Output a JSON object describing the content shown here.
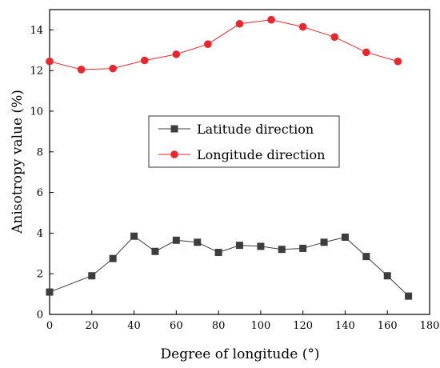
{
  "chart_data": {
    "type": "line",
    "title": "",
    "xlabel": "Degree of longitude (°)",
    "ylabel": "Anisotropy value (%)",
    "xlim": [
      0,
      180
    ],
    "ylim": [
      0,
      15
    ],
    "xticks": [
      0,
      20,
      40,
      60,
      80,
      100,
      120,
      140,
      160,
      180
    ],
    "yticks": [
      0,
      2,
      4,
      6,
      8,
      10,
      12,
      14
    ],
    "grid": false,
    "legend_position": "center-left",
    "series": [
      {
        "name": "Latitude direction",
        "color": "#3d3d3d",
        "marker": "square",
        "x": [
          0,
          20,
          30,
          40,
          50,
          60,
          70,
          80,
          90,
          100,
          110,
          120,
          130,
          140,
          150,
          160,
          170
        ],
        "y": [
          1.1,
          1.9,
          2.75,
          3.85,
          3.1,
          3.65,
          3.55,
          3.05,
          3.4,
          3.35,
          3.2,
          3.25,
          3.55,
          3.8,
          2.85,
          1.9,
          0.9
        ]
      },
      {
        "name": "Longitude direction",
        "color": "#e8262c",
        "marker": "circle",
        "x": [
          0,
          15,
          30,
          45,
          60,
          75,
          90,
          105,
          120,
          135,
          150,
          165
        ],
        "y": [
          12.45,
          12.05,
          12.1,
          12.5,
          12.8,
          13.3,
          14.3,
          14.5,
          14.15,
          13.65,
          12.9,
          12.45
        ]
      }
    ]
  }
}
